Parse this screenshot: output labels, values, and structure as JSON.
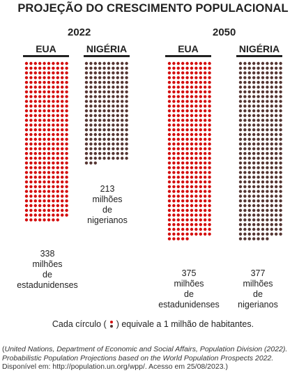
{
  "title": "PROJEÇÃO DO CRESCIMENTO POPULACIONAL",
  "colors": {
    "eua": "#d40a0a",
    "nigeria": "#553532",
    "text": "#222222"
  },
  "chart_data": {
    "type": "dot-matrix",
    "unit": "Cada círculo equivale a 1 milhão de habitantes.",
    "groups": [
      {
        "year": "2022",
        "bars": [
          {
            "country": "EUA",
            "value": 338,
            "label": "338\nmilhões\nde\nestadunidenses",
            "color": "#d40a0a"
          },
          {
            "country": "NIGÉRIA",
            "value": 213,
            "label": "213\nmilhões\nde\nnigerianos",
            "color": "#553532"
          }
        ]
      },
      {
        "year": "2050",
        "bars": [
          {
            "country": "EUA",
            "value": 375,
            "label": "375\nmilhões\nde\nestadunidenses",
            "color": "#d40a0a"
          },
          {
            "country": "NIGÉRIA",
            "value": 377,
            "label": "377\nmilhões\nde\nnigerianos",
            "color": "#553532"
          }
        ]
      }
    ]
  },
  "footnote": {
    "prefix": "Cada círculo (",
    "suffix": ") equivale a 1 milhão de habitantes."
  },
  "source": {
    "italic": "United Nations, Department of Economic and Social Affairs, Population Division (2022). Probabilistic Population Projections based on the World Population Prospects 2022.",
    "plain": " Disponível em: http://population.un.org/wpp/. Acesso em 25/08/2023.",
    "open": "(",
    "close": ")"
  }
}
